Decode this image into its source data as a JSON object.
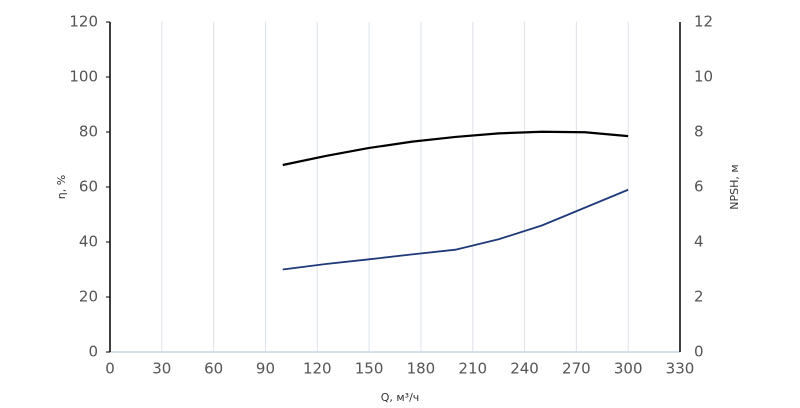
{
  "chart_data": {
    "type": "line",
    "x_label": "Q, м³/ч",
    "y_label": "η, %",
    "y2_label": "NPSH, м",
    "x": [
      100,
      125,
      150,
      175,
      200,
      225,
      250,
      275,
      300
    ],
    "series": [
      {
        "color": "#000000",
        "values": [
          68,
          71.3,
          74.2,
          76.5,
          78.2,
          79.5,
          80.1,
          79.9,
          78.5
        ]
      },
      {
        "color": "#1f3a7a",
        "axis": "y2",
        "values": [
          3.0,
          3.2,
          3.37,
          3.55,
          3.72,
          4.1,
          4.6,
          5.25,
          5.9
        ]
      }
    ],
    "xlim": [
      0,
      330
    ],
    "xticks": [
      0,
      30,
      60,
      90,
      120,
      150,
      180,
      210,
      240,
      270,
      300,
      330
    ],
    "ylim": [
      0,
      120
    ],
    "yticks": [
      0,
      20,
      40,
      60,
      80,
      100,
      120
    ],
    "y2lim": [
      0,
      12
    ],
    "y2ticks": [
      0,
      2,
      4,
      6,
      8,
      10,
      12
    ],
    "grid": true
  }
}
